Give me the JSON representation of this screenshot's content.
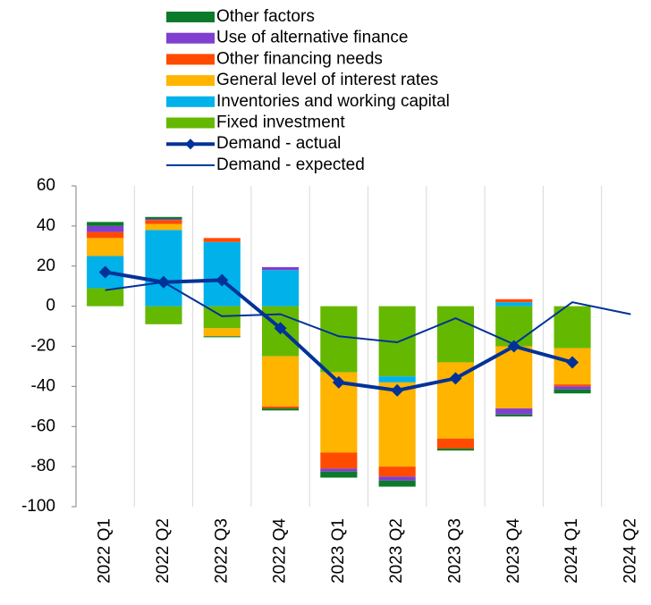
{
  "chart_data": {
    "type": "bar",
    "categories": [
      "2022 Q1",
      "2022 Q2",
      "2022 Q3",
      "2022 Q4",
      "2023 Q1",
      "2023 Q2",
      "2023 Q3",
      "2023 Q4",
      "2024 Q1",
      "2024 Q2"
    ],
    "series": [
      {
        "name": "Other factors",
        "color": "#0b7a2a",
        "values": [
          2,
          1,
          -0.5,
          -1,
          -3,
          -3,
          -1,
          -1,
          -2,
          null
        ]
      },
      {
        "name": "Use of alternative finance",
        "color": "#7f3fcf",
        "values": [
          3,
          0.5,
          0,
          1.5,
          -1.5,
          -2,
          0,
          -3,
          -1.5,
          null
        ]
      },
      {
        "name": "Other financing needs",
        "color": "#ff4b00",
        "values": [
          3,
          2,
          2,
          -1,
          -8,
          -5,
          -5,
          1.5,
          -1,
          null
        ]
      },
      {
        "name": "General level of interest rates",
        "color": "#ffb400",
        "values": [
          9,
          3,
          -4,
          -25,
          -40,
          -42,
          -38,
          -31,
          -18,
          null
        ]
      },
      {
        "name": "Inventories and working capital",
        "color": "#00b1ea",
        "values": [
          16,
          38,
          32,
          18,
          0,
          -3,
          0,
          2,
          0,
          null
        ]
      },
      {
        "name": "Fixed investment",
        "color": "#65b800",
        "values": [
          9,
          -9,
          -11,
          -25,
          -33,
          -35,
          -28,
          -20,
          -21,
          null
        ]
      },
      {
        "name": "Demand - actual",
        "color": "#003299",
        "kind": "line",
        "marker": "diamond",
        "values": [
          17,
          12,
          13,
          -11,
          -38,
          -42,
          -36,
          -20,
          -28,
          null
        ]
      },
      {
        "name": "Demand - expected",
        "color": "#003299",
        "kind": "line",
        "values": [
          8,
          12,
          -5,
          -4,
          -15,
          -18,
          -6,
          -19,
          2,
          -4
        ]
      }
    ],
    "ylim": [
      -100,
      60
    ],
    "yticks": [
      -100,
      -80,
      -60,
      -40,
      -20,
      0,
      20,
      40,
      60
    ],
    "grid": false
  }
}
